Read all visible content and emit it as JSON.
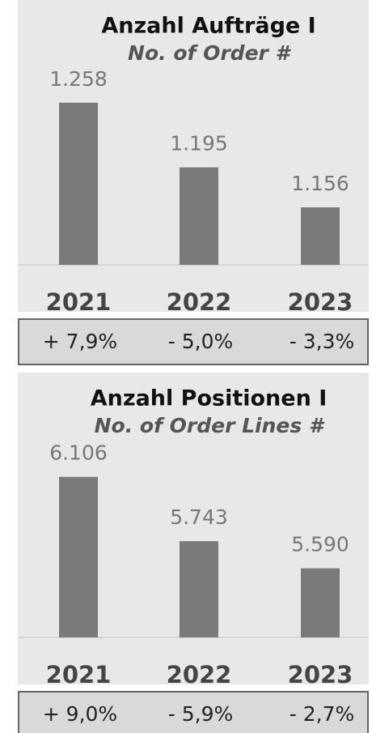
{
  "chart_data": [
    {
      "type": "bar",
      "title": "Anzahl Aufträge I",
      "subtitle": "No. of Order #",
      "categories": [
        "2021",
        "2022",
        "2023"
      ],
      "values": [
        1258,
        1195,
        1156
      ],
      "value_labels": [
        "1.258",
        "1.195",
        "1.156"
      ],
      "changes": [
        "+ 7,9%",
        "- 5,0%",
        "- 3,3%"
      ],
      "color": "#7a7a7a",
      "ylim": [
        1100,
        1287
      ]
    },
    {
      "type": "bar",
      "title": "Anzahl Positionen I",
      "subtitle": "No. of Order Lines #",
      "categories": [
        "2021",
        "2022",
        "2023"
      ],
      "values": [
        6106,
        5743,
        5590
      ],
      "value_labels": [
        "6.106",
        "5.743",
        "5.590"
      ],
      "changes": [
        "+ 9,0%",
        "- 5,9%",
        "- 2,7%"
      ],
      "color": "#7a7a7a",
      "ylim": [
        5200,
        6283
      ]
    }
  ]
}
